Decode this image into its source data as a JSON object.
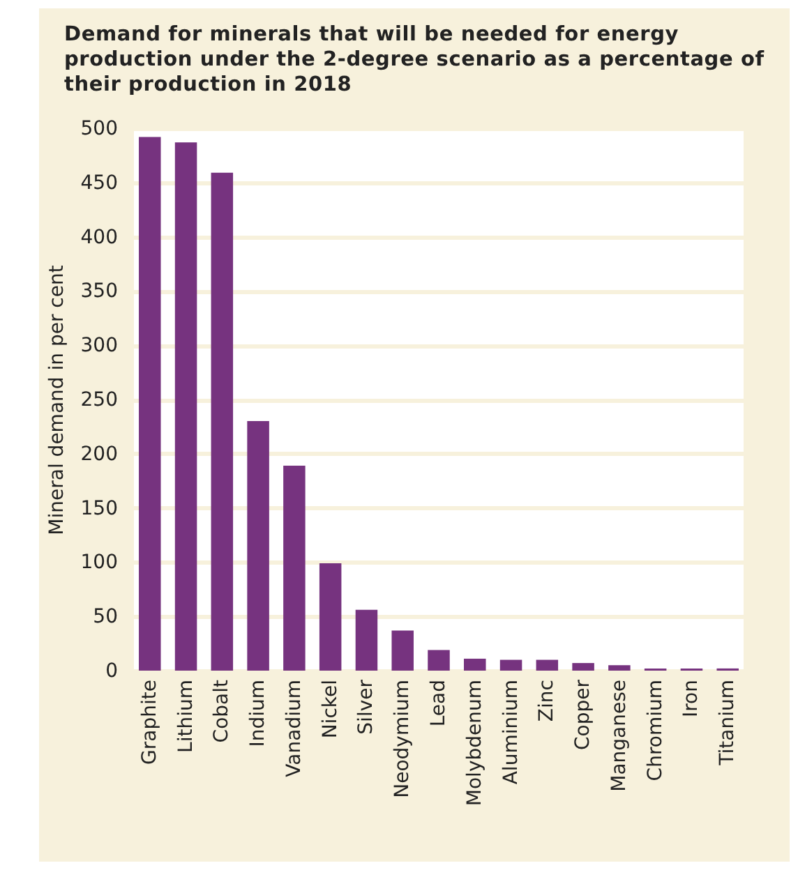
{
  "chart_data": {
    "type": "bar",
    "title": "Demand for minerals that will be needed for energy production under the 2-degree scenario as a percentage of their production in 2018",
    "ylabel": "Mineral demand in per cent",
    "categories": [
      "Graphite",
      "Lithium",
      "Cobalt",
      "Indium",
      "Vanadium",
      "Nickel",
      "Silver",
      "Neodymium",
      "Lead",
      "Molybdenum",
      "Aluminium",
      "Zinc",
      "Copper",
      "Manganese",
      "Chromium",
      "Iron",
      "Titanium"
    ],
    "values": [
      492,
      487,
      459,
      230,
      189,
      99,
      56,
      37,
      19,
      11,
      10,
      10,
      7,
      5,
      2,
      2,
      2
    ],
    "color": "#76337f",
    "ylim": [
      0,
      500
    ],
    "yticks": [
      0,
      50,
      100,
      150,
      200,
      250,
      300,
      350,
      400,
      450,
      500
    ],
    "grid": "y"
  }
}
